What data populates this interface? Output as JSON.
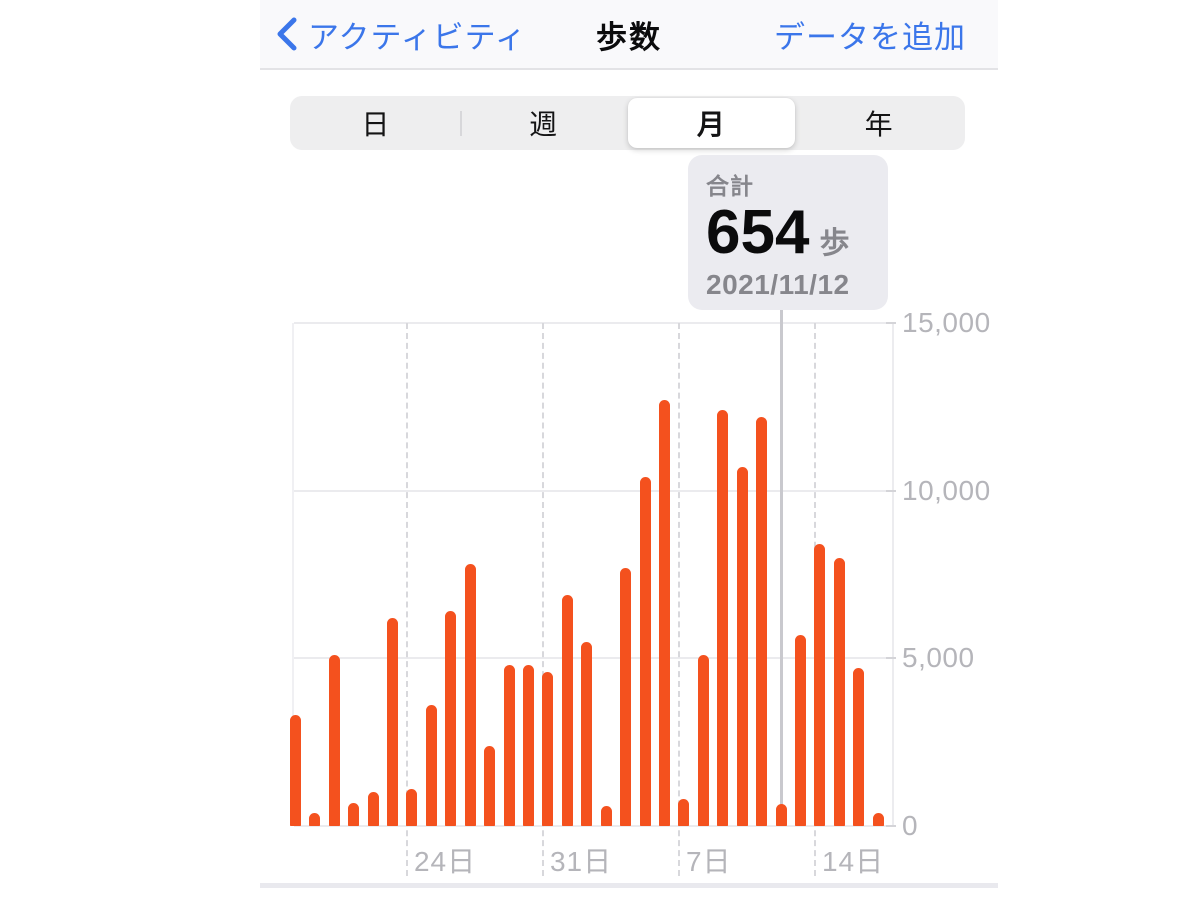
{
  "nav": {
    "back_label": "アクティビティ",
    "title": "歩数",
    "add_label": "データを追加"
  },
  "segments": [
    {
      "label": "日",
      "selected": false
    },
    {
      "label": "週",
      "selected": false
    },
    {
      "label": "月",
      "selected": true
    },
    {
      "label": "年",
      "selected": false
    }
  ],
  "tooltip": {
    "label": "合計",
    "value": "654",
    "unit": "歩",
    "date": "2021/11/12"
  },
  "chart_data": {
    "type": "bar",
    "title": "歩数 (月表示)",
    "ylabel": "歩",
    "ylim": [
      0,
      15000
    ],
    "grid": true,
    "bar_color": "#f4511e",
    "y_ticks": [
      {
        "label": "0",
        "value": 0
      },
      {
        "label": "5,000",
        "value": 5000
      },
      {
        "label": "10,000",
        "value": 10000
      },
      {
        "label": "15,000",
        "value": 15000
      }
    ],
    "x_ticks": [
      {
        "label": "24日",
        "day_index": 6
      },
      {
        "label": "31日",
        "day_index": 13
      },
      {
        "label": "7日",
        "day_index": 20
      },
      {
        "label": "14日",
        "day_index": 27
      }
    ],
    "selected_day_index": 25,
    "selected_date": "2021/11/12",
    "days": [
      {
        "date": "2021/10/18",
        "steps": 3300
      },
      {
        "date": "2021/10/19",
        "steps": 400
      },
      {
        "date": "2021/10/20",
        "steps": 5100
      },
      {
        "date": "2021/10/21",
        "steps": 700
      },
      {
        "date": "2021/10/22",
        "steps": 1000
      },
      {
        "date": "2021/10/23",
        "steps": 6200
      },
      {
        "date": "2021/10/24",
        "steps": 1100
      },
      {
        "date": "2021/10/25",
        "steps": 3600
      },
      {
        "date": "2021/10/26",
        "steps": 6400
      },
      {
        "date": "2021/10/27",
        "steps": 7800
      },
      {
        "date": "2021/10/28",
        "steps": 2400
      },
      {
        "date": "2021/10/29",
        "steps": 4800
      },
      {
        "date": "2021/10/30",
        "steps": 4800
      },
      {
        "date": "2021/10/31",
        "steps": 4600
      },
      {
        "date": "2021/11/01",
        "steps": 6900
      },
      {
        "date": "2021/11/02",
        "steps": 5500
      },
      {
        "date": "2021/11/03",
        "steps": 600
      },
      {
        "date": "2021/11/04",
        "steps": 7700
      },
      {
        "date": "2021/11/05",
        "steps": 10400
      },
      {
        "date": "2021/11/06",
        "steps": 12700
      },
      {
        "date": "2021/11/07",
        "steps": 800
      },
      {
        "date": "2021/11/08",
        "steps": 5100
      },
      {
        "date": "2021/11/09",
        "steps": 12400
      },
      {
        "date": "2021/11/10",
        "steps": 10700
      },
      {
        "date": "2021/11/11",
        "steps": 12200
      },
      {
        "date": "2021/11/12",
        "steps": 654
      },
      {
        "date": "2021/11/13",
        "steps": 5700
      },
      {
        "date": "2021/11/14",
        "steps": 8400
      },
      {
        "date": "2021/11/15",
        "steps": 8000
      },
      {
        "date": "2021/11/16",
        "steps": 4700
      },
      {
        "date": "2021/11/17",
        "steps": 400
      }
    ]
  }
}
